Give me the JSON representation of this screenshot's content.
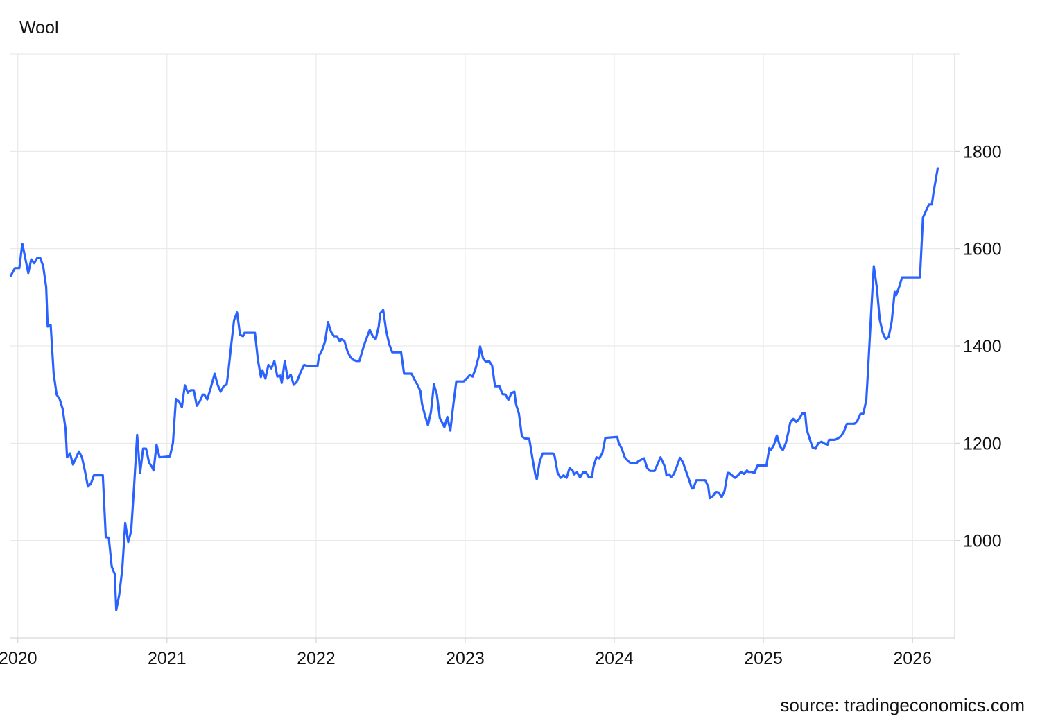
{
  "chart_data": {
    "type": "line",
    "title": "Wool",
    "source": "source: tradingeconomics.com",
    "color": "#2962ff",
    "grid": true,
    "y_axis_side": "right",
    "xlim": [
      2019.95,
      2026.32
    ],
    "xticks": [
      2020,
      2021,
      2022,
      2023,
      2024,
      2025,
      2026
    ],
    "ylim": [
      800,
      2000
    ],
    "yticks": [
      1000,
      1200,
      1400,
      1600,
      1800
    ],
    "x": [
      2019.95,
      2019.98,
      2020.01,
      2020.03,
      2020.07,
      2020.09,
      2020.11,
      2020.13,
      2020.15,
      2020.17,
      2020.19,
      2020.2,
      2020.22,
      2020.24,
      2020.26,
      2020.28,
      2020.3,
      2020.32,
      2020.33,
      2020.35,
      2020.37,
      2020.39,
      2020.41,
      2020.43,
      2020.45,
      2020.47,
      2020.49,
      2020.51,
      2020.57,
      2020.59,
      2020.61,
      2020.63,
      2020.65,
      2020.66,
      2020.68,
      2020.7,
      2020.72,
      2020.74,
      2020.76,
      2020.78,
      2020.8,
      2020.82,
      2020.84,
      2020.86,
      2020.88,
      2020.9,
      2020.91,
      2020.93,
      2020.95,
      2021.02,
      2021.04,
      2021.06,
      2021.08,
      2021.1,
      2021.12,
      2021.14,
      2021.16,
      2021.18,
      2021.2,
      2021.22,
      2021.24,
      2021.25,
      2021.27,
      2021.29,
      2021.32,
      2021.34,
      2021.36,
      2021.38,
      2021.4,
      2021.41,
      2021.43,
      2021.45,
      2021.47,
      2021.49,
      2021.51,
      2021.52,
      2021.59,
      2021.61,
      2021.63,
      2021.64,
      2021.66,
      2021.68,
      2021.7,
      2021.72,
      2021.74,
      2021.76,
      2021.77,
      2021.79,
      2021.81,
      2021.83,
      2021.85,
      2021.87,
      2021.89,
      2021.9,
      2021.92,
      2021.94,
      2022.01,
      2022.02,
      2022.04,
      2022.06,
      2022.08,
      2022.1,
      2022.12,
      2022.14,
      2022.16,
      2022.17,
      2022.19,
      2022.21,
      2022.23,
      2022.25,
      2022.27,
      2022.29,
      2022.3,
      2022.32,
      2022.34,
      2022.36,
      2022.38,
      2022.4,
      2022.42,
      2022.43,
      2022.45,
      2022.47,
      2022.49,
      2022.51,
      2022.57,
      2022.59,
      2022.64,
      2022.66,
      2022.68,
      2022.7,
      2022.71,
      2022.73,
      2022.75,
      2022.77,
      2022.79,
      2022.81,
      2022.83,
      2022.84,
      2022.86,
      2022.88,
      2022.9,
      2022.92,
      2022.94,
      2022.99,
      2023.01,
      2023.03,
      2023.05,
      2023.07,
      2023.09,
      2023.1,
      2023.12,
      2023.14,
      2023.16,
      2023.18,
      2023.2,
      2023.23,
      2023.25,
      2023.27,
      2023.29,
      2023.31,
      2023.33,
      2023.34,
      2023.36,
      2023.38,
      2023.4,
      2023.43,
      2023.45,
      2023.47,
      2023.48,
      2023.5,
      2023.52,
      2023.59,
      2023.6,
      2023.62,
      2023.64,
      2023.66,
      2023.68,
      2023.7,
      2023.72,
      2023.73,
      2023.75,
      2023.77,
      2023.79,
      2023.81,
      2023.83,
      2023.85,
      2023.86,
      2023.88,
      2023.9,
      2023.92,
      2023.94,
      2024.02,
      2024.03,
      2024.05,
      2024.07,
      2024.09,
      2024.11,
      2024.15,
      2024.16,
      2024.2,
      2024.22,
      2024.24,
      2024.27,
      2024.29,
      2024.31,
      2024.34,
      2024.35,
      2024.37,
      2024.38,
      2024.4,
      2024.42,
      2024.44,
      2024.46,
      2024.48,
      2024.5,
      2024.52,
      2024.53,
      2024.55,
      2024.61,
      2024.63,
      2024.64,
      2024.66,
      2024.68,
      2024.7,
      2024.72,
      2024.74,
      2024.76,
      2024.77,
      2024.79,
      2024.81,
      2024.83,
      2024.85,
      2024.87,
      2024.89,
      2024.9,
      2024.92,
      2024.94,
      2024.96,
      2025.02,
      2025.04,
      2025.05,
      2025.07,
      2025.09,
      2025.11,
      2025.13,
      2025.15,
      2025.17,
      2025.18,
      2025.2,
      2025.22,
      2025.24,
      2025.26,
      2025.28,
      2025.29,
      2025.31,
      2025.33,
      2025.35,
      2025.37,
      2025.39,
      2025.41,
      2025.43,
      2025.44,
      2025.48,
      2025.5,
      2025.52,
      2025.54,
      2025.56,
      2025.61,
      2025.63,
      2025.65,
      2025.67,
      2025.69,
      2025.7,
      2025.72,
      2025.74,
      2025.76,
      2025.78,
      2025.8,
      2025.82,
      2025.84,
      2025.86,
      2025.88,
      2025.89,
      2025.91,
      2025.93,
      2026.05,
      2026.07,
      2026.11,
      2026.13,
      2026.14,
      2026.17
    ],
    "values": [
      1543,
      1560,
      1560,
      1610,
      1550,
      1578,
      1570,
      1581,
      1581,
      1564,
      1521,
      1440,
      1443,
      1343,
      1300,
      1291,
      1271,
      1229,
      1171,
      1179,
      1156,
      1170,
      1183,
      1171,
      1143,
      1111,
      1117,
      1134,
      1134,
      1007,
      1006,
      946,
      931,
      857,
      889,
      940,
      1036,
      997,
      1020,
      1114,
      1217,
      1139,
      1189,
      1189,
      1160,
      1151,
      1144,
      1197,
      1171,
      1173,
      1200,
      1291,
      1286,
      1274,
      1319,
      1304,
      1309,
      1309,
      1277,
      1286,
      1300,
      1300,
      1290,
      1310,
      1343,
      1320,
      1306,
      1317,
      1321,
      1343,
      1400,
      1453,
      1469,
      1423,
      1420,
      1427,
      1427,
      1371,
      1336,
      1350,
      1333,
      1361,
      1354,
      1369,
      1337,
      1339,
      1324,
      1369,
      1333,
      1341,
      1320,
      1326,
      1341,
      1349,
      1361,
      1359,
      1359,
      1380,
      1391,
      1409,
      1449,
      1429,
      1420,
      1420,
      1409,
      1414,
      1410,
      1389,
      1377,
      1371,
      1369,
      1369,
      1379,
      1400,
      1417,
      1433,
      1420,
      1414,
      1440,
      1467,
      1474,
      1431,
      1404,
      1387,
      1387,
      1343,
      1343,
      1331,
      1320,
      1307,
      1281,
      1257,
      1237,
      1264,
      1321,
      1300,
      1251,
      1246,
      1233,
      1254,
      1226,
      1279,
      1327,
      1327,
      1333,
      1340,
      1337,
      1354,
      1377,
      1399,
      1374,
      1367,
      1369,
      1360,
      1317,
      1317,
      1301,
      1300,
      1289,
      1303,
      1306,
      1281,
      1261,
      1214,
      1210,
      1209,
      1171,
      1136,
      1126,
      1163,
      1179,
      1179,
      1173,
      1139,
      1129,
      1134,
      1129,
      1149,
      1144,
      1136,
      1140,
      1130,
      1140,
      1140,
      1130,
      1130,
      1151,
      1171,
      1169,
      1180,
      1211,
      1213,
      1200,
      1189,
      1171,
      1164,
      1159,
      1159,
      1163,
      1169,
      1149,
      1143,
      1143,
      1157,
      1171,
      1151,
      1134,
      1136,
      1130,
      1137,
      1153,
      1170,
      1161,
      1143,
      1126,
      1107,
      1107,
      1124,
      1124,
      1111,
      1087,
      1091,
      1100,
      1099,
      1089,
      1103,
      1139,
      1139,
      1134,
      1129,
      1134,
      1141,
      1137,
      1144,
      1141,
      1141,
      1139,
      1154,
      1154,
      1190,
      1186,
      1196,
      1216,
      1194,
      1186,
      1200,
      1227,
      1243,
      1250,
      1244,
      1250,
      1261,
      1261,
      1229,
      1209,
      1191,
      1189,
      1201,
      1203,
      1199,
      1197,
      1207,
      1207,
      1210,
      1214,
      1224,
      1240,
      1240,
      1246,
      1260,
      1261,
      1289,
      1343,
      1457,
      1564,
      1521,
      1454,
      1427,
      1414,
      1419,
      1450,
      1511,
      1504,
      1521,
      1541,
      1541,
      1664,
      1691,
      1691,
      1714,
      1767
    ]
  }
}
